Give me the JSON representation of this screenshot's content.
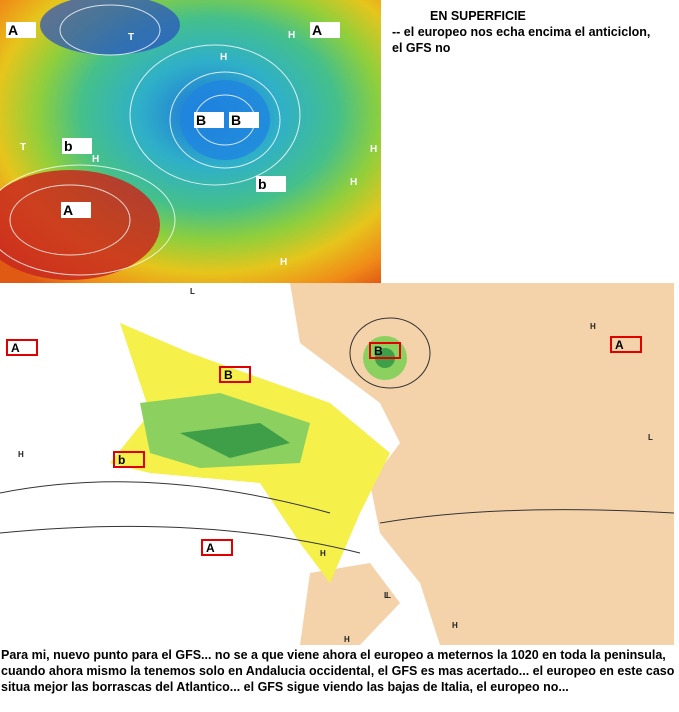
{
  "header": {
    "title": "EN SUPERFICIE",
    "lines": [
      "-- el europeo nos echa encima el anticiclon,",
      "el GFS no"
    ]
  },
  "top_map": {
    "labels": [
      "A",
      "A",
      "B",
      "B",
      "b",
      "b",
      "A"
    ],
    "letters": [
      "H",
      "T",
      "H",
      "H",
      "T",
      "H",
      "H",
      "H"
    ]
  },
  "bottom_map": {
    "labels": [
      "A",
      "B",
      "B",
      "A",
      "b",
      "A"
    ],
    "letters": [
      "H",
      "H",
      "L",
      "H",
      "L",
      "H",
      "L",
      "H",
      "L"
    ]
  },
  "body": {
    "text": "Para mi, nuevo punto para el GFS... no se a que viene ahora el europeo a meternos la 1020 en toda la peninsula, cuando ahora mismo la tenemos solo en Andalucia occidental, el GFS es mas acertado... el europeo en este caso situa mejor las borrascas del Atlantico... el GFS sigue viendo las bajas de Italia, el europeo no..."
  }
}
